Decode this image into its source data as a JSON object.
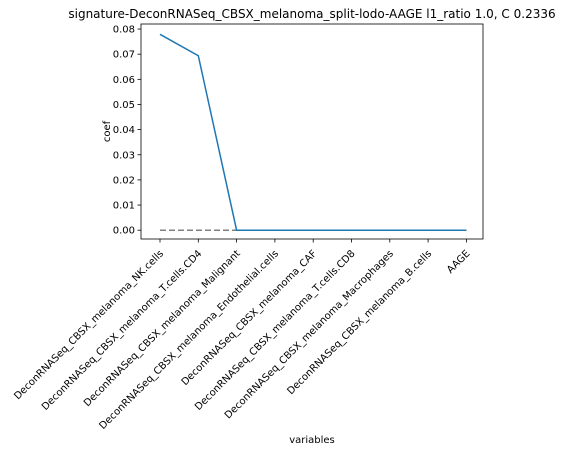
{
  "chart_data": {
    "type": "line",
    "title": "signature-DeconRNASeq_CBSX_melanoma_split-lodo-AAGE l1_ratio 1.0, C 0.2336",
    "xlabel": "variables",
    "ylabel": "coef",
    "categories": [
      "DeconRNASeq_CBSX_melanoma_NK.cells",
      "DeconRNASeq_CBSX_melanoma_T.cells.CD4",
      "DeconRNASeq_CBSX_melanoma_Malignant",
      "DeconRNASeq_CBSX_melanoma_Endothelial.cells",
      "DeconRNASeq_CBSX_melanoma_CAF",
      "DeconRNASeq_CBSX_melanoma_T.cells.CD8",
      "DeconRNASeq_CBSX_melanoma_Macrophages",
      "DeconRNASeq_CBSX_melanoma_B.cells",
      "AAGE"
    ],
    "series": [
      {
        "values": [
          0.0779,
          0.0694,
          0.0,
          0.0,
          0.0,
          0.0,
          0.0,
          0.0,
          0.0
        ],
        "color": "#1f77b4"
      }
    ],
    "reference_line": {
      "y": 0.0,
      "style": "dashed",
      "color": "#808080"
    },
    "ylim": [
      -0.0035,
      0.082
    ],
    "yticks": [
      0.0,
      0.01,
      0.02,
      0.03,
      0.04,
      0.05,
      0.06,
      0.07,
      0.08
    ],
    "ytick_labels": [
      "0.00",
      "0.01",
      "0.02",
      "0.03",
      "0.04",
      "0.05",
      "0.06",
      "0.07",
      "0.08"
    ],
    "grid": false,
    "legend": "none"
  }
}
